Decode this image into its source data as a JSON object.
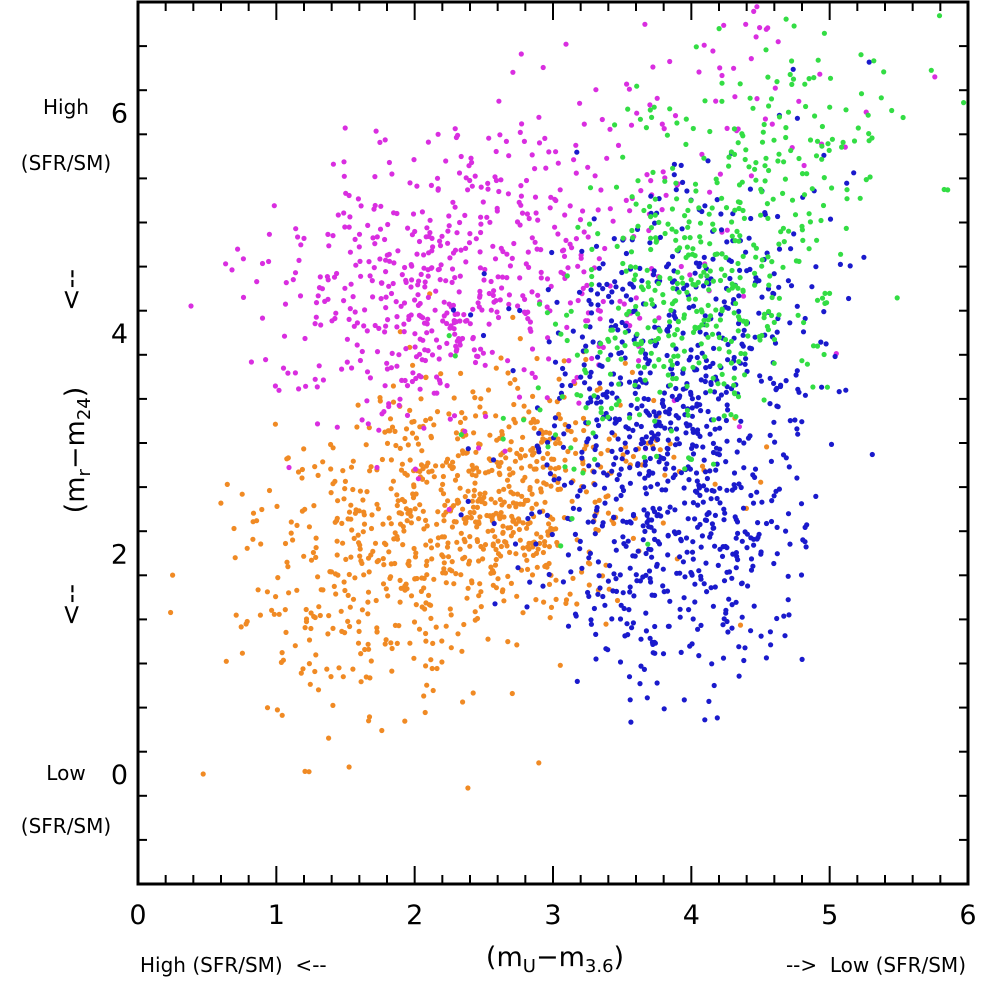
{
  "chart_data": {
    "type": "scatter",
    "title": "",
    "xlabel": "(m_U − m_3.6)",
    "xlabel_parts": {
      "open": "(m",
      "sub1": "U",
      "mid": "−m",
      "sub2": "3.6",
      "close": ")"
    },
    "ylabel_parts": {
      "open": "(m",
      "sub1": "r",
      "mid": "−m",
      "sub2": "24",
      "close": ")"
    },
    "x_annotation_left": "High (SFR/SM)  <--",
    "x_annotation_right": "-->  Low (SFR/SM)",
    "y_arrow_up": "<--",
    "y_arrow_down": "<--",
    "y_annotation_high": [
      "High",
      "(SFR/SM)"
    ],
    "y_annotation_low": [
      "Low",
      "(SFR/SM)"
    ],
    "xlim": [
      0,
      6
    ],
    "ylim": [
      -1,
      7
    ],
    "xticks": [
      "0",
      "1",
      "2",
      "3",
      "4",
      "5",
      "6"
    ],
    "yticks": [
      "0",
      "2",
      "4",
      "6"
    ],
    "series": [
      {
        "name": "orange",
        "color": "#f08a24",
        "seed": 11,
        "points": 900,
        "clusters": [
          {
            "cx": 2.4,
            "cy": 2.4,
            "sx": 0.55,
            "sy": 0.55,
            "w": 0.6
          },
          {
            "cx": 1.5,
            "cy": 1.6,
            "sx": 0.55,
            "sy": 0.7,
            "w": 0.25
          },
          {
            "cx": 3.0,
            "cy": 2.9,
            "sx": 0.5,
            "sy": 0.5,
            "w": 0.15
          }
        ]
      },
      {
        "name": "magenta",
        "color": "#d92ee0",
        "seed": 23,
        "points": 650,
        "clusters": [
          {
            "cx": 2.0,
            "cy": 4.3,
            "sx": 0.55,
            "sy": 0.6,
            "w": 0.55
          },
          {
            "cx": 3.0,
            "cy": 4.8,
            "sx": 0.6,
            "sy": 0.7,
            "w": 0.35
          },
          {
            "cx": 4.2,
            "cy": 6.0,
            "sx": 0.6,
            "sy": 0.5,
            "w": 0.1
          }
        ]
      },
      {
        "name": "blue",
        "color": "#1a1acc",
        "seed": 37,
        "points": 950,
        "clusters": [
          {
            "cx": 3.8,
            "cy": 3.3,
            "sx": 0.55,
            "sy": 0.75,
            "w": 0.55
          },
          {
            "cx": 3.9,
            "cy": 1.9,
            "sx": 0.45,
            "sy": 0.6,
            "w": 0.3
          },
          {
            "cx": 4.2,
            "cy": 4.5,
            "sx": 0.5,
            "sy": 0.6,
            "w": 0.15
          }
        ]
      },
      {
        "name": "green",
        "color": "#33dd44",
        "seed": 53,
        "points": 520,
        "clusters": [
          {
            "cx": 4.0,
            "cy": 4.3,
            "sx": 0.45,
            "sy": 0.55,
            "w": 0.55
          },
          {
            "cx": 4.6,
            "cy": 5.6,
            "sx": 0.5,
            "sy": 0.55,
            "w": 0.35
          },
          {
            "cx": 3.4,
            "cy": 3.2,
            "sx": 0.45,
            "sy": 0.45,
            "w": 0.1
          }
        ]
      }
    ]
  }
}
